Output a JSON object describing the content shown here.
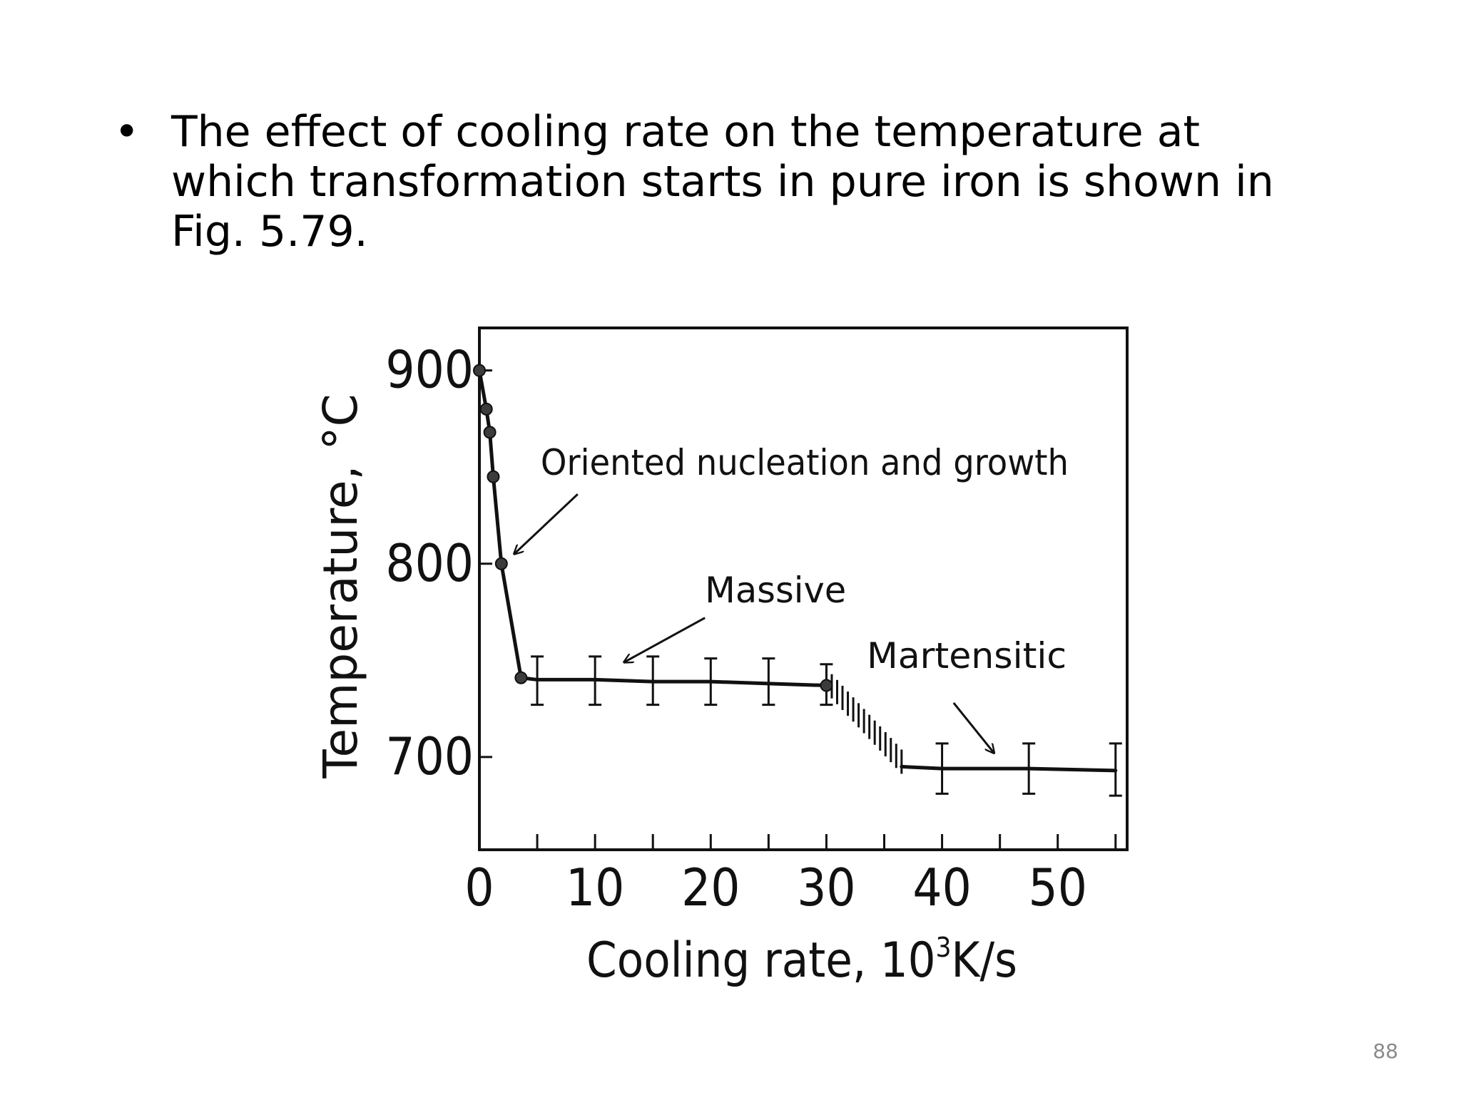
{
  "slide": {
    "bullet_symbol": "•",
    "bullet_text": "The effect of cooling rate on the temperature at which transformation starts in pure iron is shown in Fig. 5.79.",
    "page_number": "88"
  },
  "chart_data": {
    "type": "line",
    "xlabel": "Cooling rate, 10",
    "xlabel_superscript": "3",
    "xlabel_unit": "K/s",
    "ylabel": "Temperature, °C",
    "xlim": [
      0,
      56
    ],
    "ylim": [
      652,
      922
    ],
    "x_tick_labels": [
      {
        "value": 0,
        "label": "0"
      },
      {
        "value": 10,
        "label": "10"
      },
      {
        "value": 20,
        "label": "20"
      },
      {
        "value": 30,
        "label": "30"
      },
      {
        "value": 40,
        "label": "40"
      },
      {
        "value": 50,
        "label": "50"
      }
    ],
    "x_minor_ticks": [
      5,
      10,
      15,
      20,
      25,
      30,
      35,
      40,
      45,
      50,
      55
    ],
    "y_tick_labels": [
      {
        "value": 900,
        "label": "900"
      },
      {
        "value": 800,
        "label": "800"
      },
      {
        "value": 700,
        "label": "700"
      }
    ],
    "grid": false,
    "series": [
      {
        "segments": [
          {
            "regime": "oriented",
            "points": [
              [
                0,
                900
              ],
              [
                0.6,
                880
              ],
              [
                0.9,
                868
              ],
              [
                1.2,
                845
              ],
              [
                1.9,
                800
              ],
              [
                3.6,
                741
              ]
            ]
          },
          {
            "regime": "massive",
            "points": [
              [
                3.6,
                741
              ],
              [
                5,
                740
              ],
              [
                10,
                740
              ],
              [
                15,
                739
              ],
              [
                20,
                739
              ],
              [
                25,
                738
              ],
              [
                30,
                737
              ]
            ]
          },
          {
            "regime": "martensitic",
            "points": [
              [
                36.5,
                695
              ],
              [
                40,
                694
              ],
              [
                47.5,
                694
              ],
              [
                55,
                693
              ]
            ]
          }
        ],
        "transition": {
          "from": [
            30,
            737
          ],
          "to": [
            36.5,
            695
          ]
        },
        "markers": [
          [
            0,
            900
          ],
          [
            0.6,
            880
          ],
          [
            0.9,
            868
          ],
          [
            1.2,
            845
          ],
          [
            1.9,
            800
          ],
          [
            3.6,
            741
          ],
          [
            30,
            737
          ]
        ],
        "error_bars": [
          {
            "x": 5,
            "y": 740,
            "low": 727,
            "high": 752
          },
          {
            "x": 10,
            "y": 740,
            "low": 727,
            "high": 752
          },
          {
            "x": 15,
            "y": 739,
            "low": 727,
            "high": 752
          },
          {
            "x": 20,
            "y": 739,
            "low": 727,
            "high": 751
          },
          {
            "x": 25,
            "y": 738,
            "low": 727,
            "high": 751
          },
          {
            "x": 30,
            "y": 737,
            "low": 727,
            "high": 748
          },
          {
            "x": 40,
            "y": 694,
            "low": 681,
            "high": 707
          },
          {
            "x": 47.5,
            "y": 694,
            "low": 681,
            "high": 707
          },
          {
            "x": 55,
            "y": 693,
            "low": 680,
            "high": 707
          }
        ]
      }
    ],
    "annotations": [
      {
        "text": "Oriented nucleation and growth",
        "text_at": [
          5.3,
          846
        ],
        "arrow_from": [
          8.5,
          836
        ],
        "arrow_to": [
          3,
          805
        ]
      },
      {
        "text": "Massive",
        "text_at": [
          19.5,
          780
        ],
        "arrow_from": [
          19.5,
          772
        ],
        "arrow_to": [
          12.5,
          749
        ]
      },
      {
        "text": "Martensitic",
        "text_at": [
          33.5,
          746
        ],
        "arrow_from": [
          41,
          728
        ],
        "arrow_to": [
          44.5,
          702
        ]
      }
    ]
  }
}
